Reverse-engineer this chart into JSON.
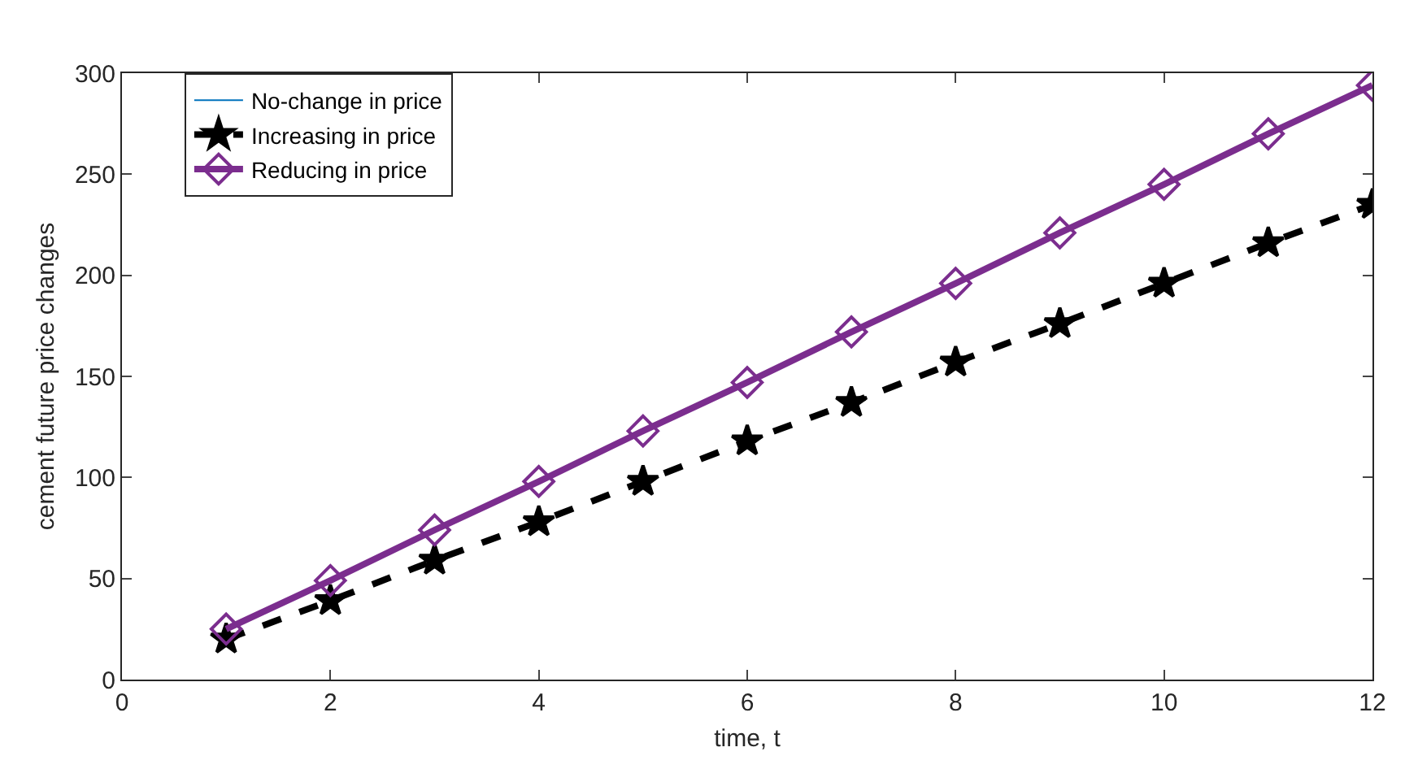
{
  "chart_data": {
    "type": "line",
    "xlabel": "time, t",
    "ylabel": "cement future price changes",
    "x": [
      1,
      2,
      3,
      4,
      5,
      6,
      7,
      8,
      9,
      10,
      11,
      12
    ],
    "series": [
      {
        "name": "No-change in price",
        "color": "#0072bd",
        "marker": "none",
        "line_style": "solid",
        "values": [
          null,
          null,
          null,
          null,
          null,
          null,
          null,
          null,
          null,
          null,
          null,
          null
        ]
      },
      {
        "name": "Increasing in price",
        "color": "#000000",
        "marker": "star",
        "line_style": "dashed",
        "values": [
          20,
          39,
          59,
          78,
          98,
          118,
          137,
          157,
          176,
          196,
          216,
          235
        ]
      },
      {
        "name": "Reducing in price",
        "color": "#7b2d8e",
        "marker": "diamond",
        "line_style": "solid",
        "values": [
          25,
          49,
          74,
          98,
          123,
          147,
          172,
          196,
          221,
          245,
          270,
          294
        ]
      }
    ],
    "xlim": [
      0,
      12
    ],
    "xticks": [
      0,
      2,
      4,
      6,
      8,
      10,
      12
    ],
    "ylim": [
      0,
      300
    ],
    "yticks": [
      0,
      50,
      100,
      150,
      200,
      250,
      300
    ],
    "legend": "top"
  }
}
